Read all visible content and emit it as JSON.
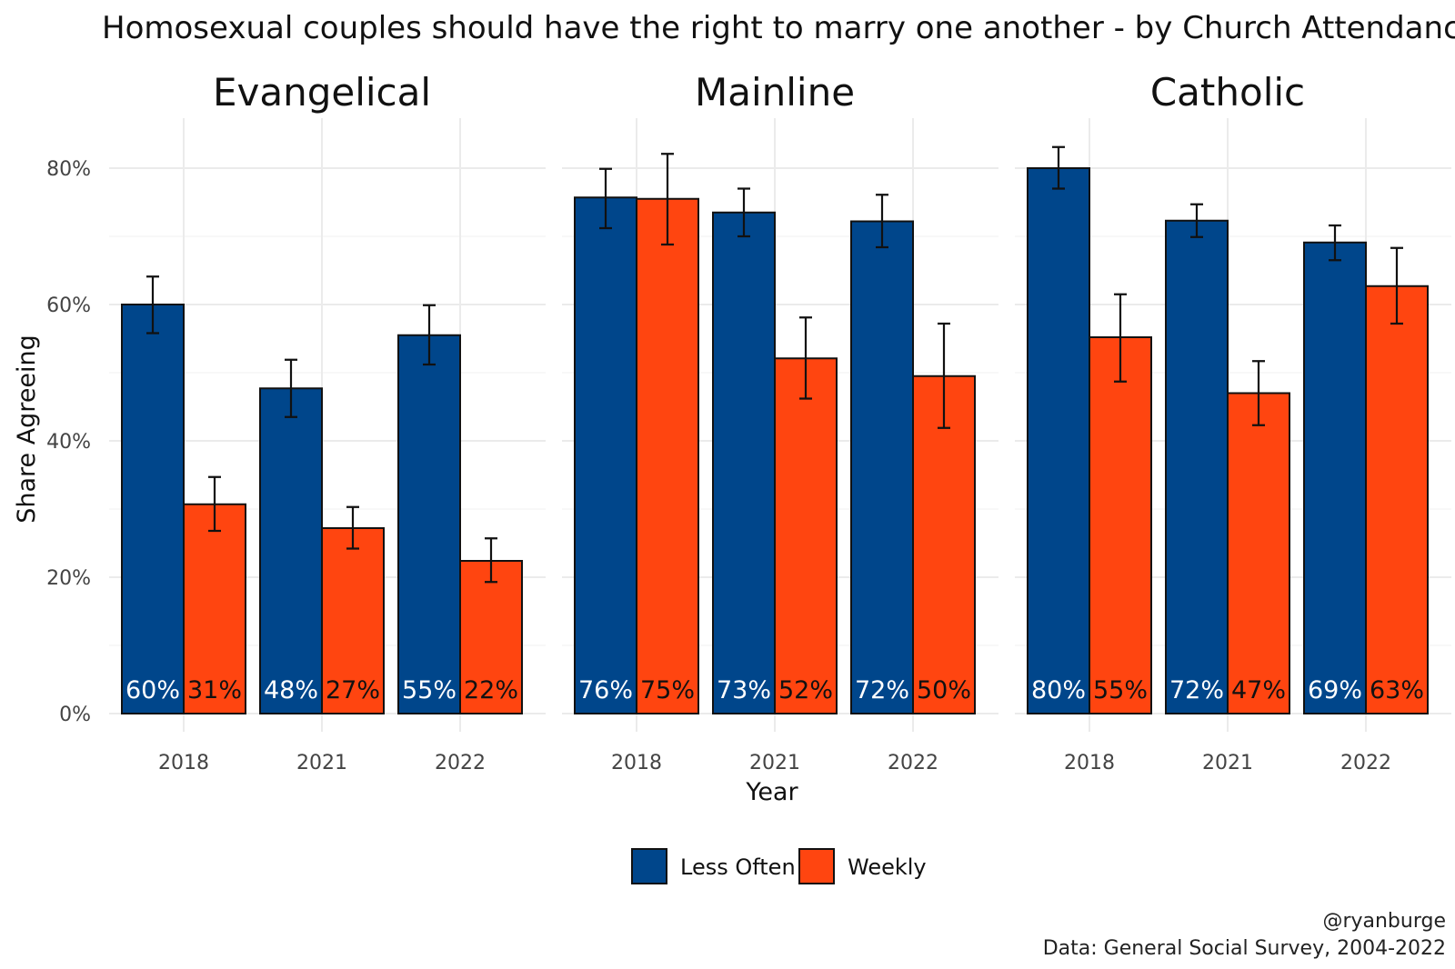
{
  "chart_data": {
    "type": "bar",
    "title": "Homosexual couples should have the right to marry one another - by Church Attendance",
    "xlabel": "Year",
    "ylabel": "Share Agreeing",
    "ylim": [
      0,
      0.85
    ],
    "yticks": [
      0,
      0.2,
      0.4,
      0.6,
      0.8
    ],
    "ytick_labels": [
      "0%",
      "20%",
      "40%",
      "60%",
      "80%"
    ],
    "categories": [
      "2018",
      "2021",
      "2022"
    ],
    "legend": {
      "placement": "bottom",
      "entries": [
        "Less Often",
        "Weekly"
      ]
    },
    "colors": {
      "Less Often": "#00468b",
      "Weekly": "#ff4510"
    },
    "facets": [
      {
        "name": "Evangelical",
        "series": [
          {
            "name": "Less Often",
            "values": [
              0.6,
              0.477,
              0.555
            ],
            "lower": [
              0.558,
              0.435,
              0.512
            ],
            "upper": [
              0.641,
              0.519,
              0.599
            ],
            "labels": [
              "60%",
              "48%",
              "55%"
            ]
          },
          {
            "name": "Weekly",
            "values": [
              0.307,
              0.272,
              0.224
            ],
            "lower": [
              0.268,
              0.242,
              0.193
            ],
            "upper": [
              0.347,
              0.303,
              0.257
            ],
            "labels": [
              "31%",
              "27%",
              "22%"
            ]
          }
        ]
      },
      {
        "name": "Mainline",
        "series": [
          {
            "name": "Less Often",
            "values": [
              0.757,
              0.735,
              0.722
            ],
            "lower": [
              0.712,
              0.7,
              0.684
            ],
            "upper": [
              0.799,
              0.77,
              0.761
            ],
            "labels": [
              "76%",
              "73%",
              "72%"
            ]
          },
          {
            "name": "Weekly",
            "values": [
              0.755,
              0.521,
              0.495
            ],
            "lower": [
              0.688,
              0.462,
              0.419
            ],
            "upper": [
              0.821,
              0.581,
              0.572
            ],
            "labels": [
              "75%",
              "52%",
              "50%"
            ]
          }
        ]
      },
      {
        "name": "Catholic",
        "series": [
          {
            "name": "Less Often",
            "values": [
              0.8,
              0.723,
              0.691
            ],
            "lower": [
              0.77,
              0.699,
              0.665
            ],
            "upper": [
              0.831,
              0.747,
              0.716
            ],
            "labels": [
              "80%",
              "72%",
              "69%"
            ]
          },
          {
            "name": "Weekly",
            "values": [
              0.552,
              0.47,
              0.627
            ],
            "lower": [
              0.487,
              0.423,
              0.572
            ],
            "upper": [
              0.615,
              0.517,
              0.683
            ],
            "labels": [
              "55%",
              "47%",
              "63%"
            ]
          }
        ]
      }
    ],
    "caption": [
      "@ryanburge",
      "Data: General Social Survey, 2004-2022"
    ]
  }
}
